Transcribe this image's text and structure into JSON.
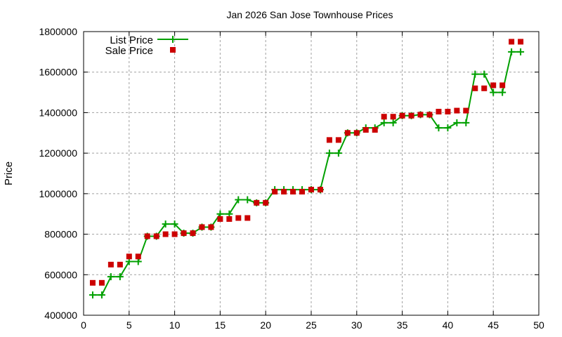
{
  "chart_data": {
    "type": "line",
    "title": "Jan 2026 San Jose Townhouse Prices",
    "xlabel": "",
    "ylabel": "Price",
    "xlim": [
      0,
      50
    ],
    "ylim": [
      400000,
      1800000
    ],
    "xticks": [
      0,
      5,
      10,
      15,
      20,
      25,
      30,
      35,
      40,
      45,
      50
    ],
    "yticks": [
      400000,
      600000,
      800000,
      1000000,
      1200000,
      1400000,
      1600000,
      1800000
    ],
    "grid": true,
    "legend_position": "top-left",
    "x": [
      1,
      2,
      3,
      4,
      5,
      6,
      7,
      8,
      9,
      10,
      11,
      12,
      13,
      14,
      15,
      16,
      17,
      18,
      19,
      20,
      21,
      22,
      23,
      24,
      25,
      26,
      27,
      28,
      29,
      30,
      31,
      32,
      33,
      34,
      35,
      36,
      37,
      38,
      39,
      40,
      41,
      42,
      43,
      44,
      45,
      46,
      47,
      48
    ],
    "series": [
      {
        "name": "List Price",
        "style": "linespoints",
        "color": "#00a000",
        "values": [
          500000,
          500000,
          590000,
          590000,
          665000,
          665000,
          790000,
          790000,
          850000,
          850000,
          805000,
          805000,
          835000,
          835000,
          900000,
          900000,
          970000,
          970000,
          955000,
          955000,
          1020000,
          1020000,
          1020000,
          1020000,
          1020000,
          1020000,
          1200000,
          1200000,
          1300000,
          1300000,
          1325000,
          1325000,
          1350000,
          1350000,
          1385000,
          1385000,
          1390000,
          1390000,
          1325000,
          1325000,
          1350000,
          1350000,
          1590000,
          1590000,
          1500000,
          1500000,
          1700000,
          1700000
        ]
      },
      {
        "name": "Sale Price",
        "style": "points",
        "color": "#cc0000",
        "values": [
          560000,
          560000,
          650000,
          650000,
          690000,
          690000,
          790000,
          790000,
          800000,
          800000,
          805000,
          805000,
          835000,
          835000,
          875000,
          875000,
          880000,
          880000,
          955000,
          955000,
          1010000,
          1010000,
          1010000,
          1010000,
          1020000,
          1020000,
          1265000,
          1265000,
          1300000,
          1300000,
          1315000,
          1315000,
          1380000,
          1380000,
          1385000,
          1385000,
          1390000,
          1390000,
          1405000,
          1405000,
          1410000,
          1410000,
          1520000,
          1520000,
          1535000,
          1535000,
          1750000,
          1750000
        ]
      }
    ]
  }
}
